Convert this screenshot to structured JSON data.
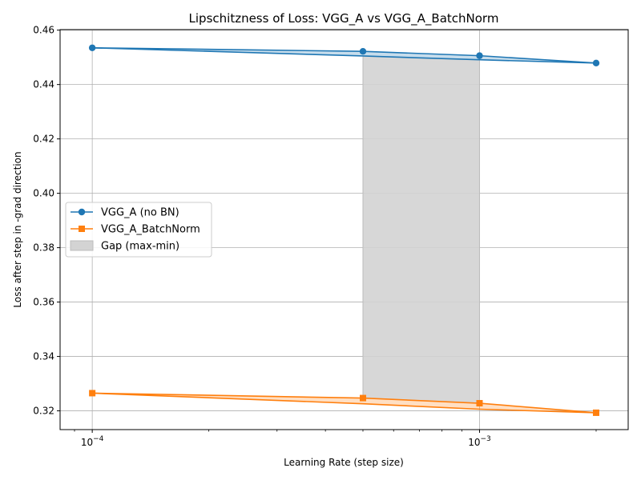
{
  "chart_data": {
    "type": "line",
    "title": "Lipschitzness of Loss: VGG_A vs VGG_A_BatchNorm",
    "xlabel": "Learning Rate (step size)",
    "ylabel": "Loss after step in -grad direction",
    "xscale": "log",
    "xlim": [
      8.26e-05,
      0.00242
    ],
    "ylim": [
      0.3131,
      0.4602
    ],
    "grid": true,
    "legend_position": "center-left",
    "x": [
      0.0001,
      0.0005,
      0.001,
      0.002
    ],
    "x_tick_labels": [
      {
        "value": 0.0001,
        "base": "10",
        "exp": "−4"
      },
      {
        "value": 0.001,
        "base": "10",
        "exp": "−3"
      }
    ],
    "y_ticks": [
      {
        "value": 0.32,
        "label": "0.32"
      },
      {
        "value": 0.34,
        "label": "0.34"
      },
      {
        "value": 0.36,
        "label": "0.36"
      },
      {
        "value": 0.38,
        "label": "0.38"
      },
      {
        "value": 0.4,
        "label": "0.40"
      },
      {
        "value": 0.42,
        "label": "0.42"
      },
      {
        "value": 0.44,
        "label": "0.44"
      },
      {
        "value": 0.46,
        "label": "0.46"
      }
    ],
    "series": [
      {
        "name": "VGG_A (no BN)",
        "color": "#1f77b4",
        "marker": "circle",
        "max": [
          0.4535,
          0.4522,
          0.4506,
          0.4479
        ],
        "min": [
          0.4535,
          0.4505,
          0.4491,
          0.4479
        ]
      },
      {
        "name": "VGG_A_BatchNorm",
        "color": "#ff7f0e",
        "marker": "square",
        "max": [
          0.3265,
          0.3247,
          0.3228,
          0.3193
        ],
        "min": [
          0.3265,
          0.3226,
          0.3206,
          0.3193
        ]
      }
    ],
    "gap_fill": {
      "name": "Gap (max-min)",
      "color": "#d3d3d3",
      "x_range": [
        0.0005,
        0.001
      ]
    }
  }
}
